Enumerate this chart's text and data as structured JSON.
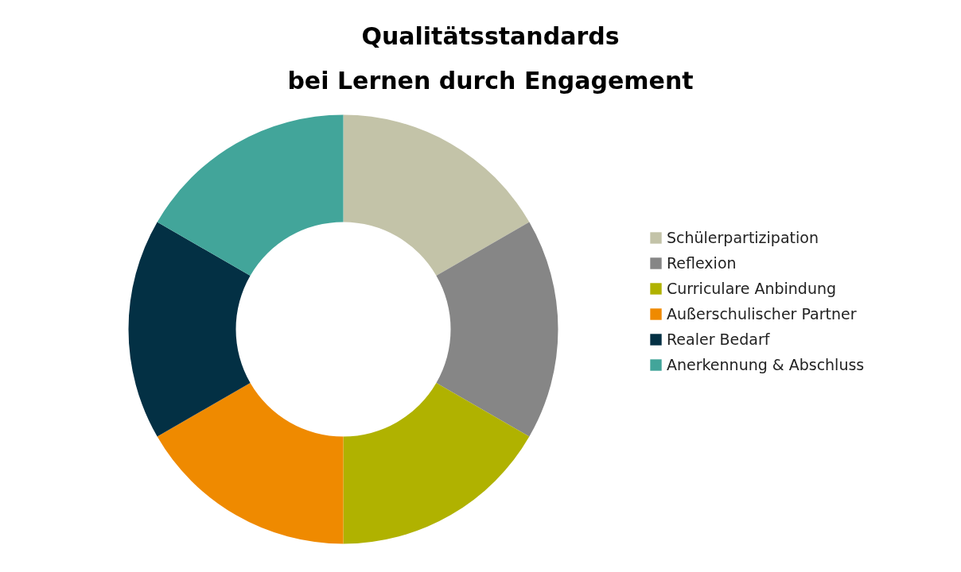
{
  "chart_data": {
    "type": "donut",
    "title": "Qualitätsstandards\nbei Lernen durch Engagement",
    "categories": [
      "Schülerpartizipation",
      "Reflexion",
      "Curriculare Anbindung",
      "Außerschulischer Partner",
      "Realer Bedarf",
      "Anerkennung & Abschluss"
    ],
    "values": [
      16.67,
      16.67,
      16.67,
      16.67,
      16.67,
      16.67
    ],
    "colors": [
      "#c3c3a8",
      "#868686",
      "#b0b200",
      "#ef8a00",
      "#033044",
      "#42a59a"
    ],
    "legend": "right"
  }
}
